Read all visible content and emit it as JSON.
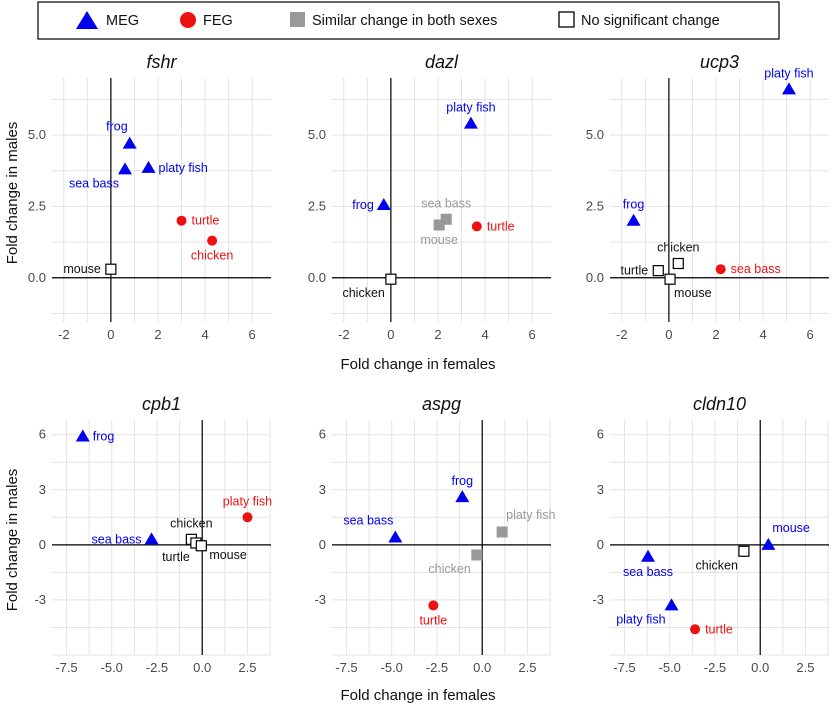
{
  "legend": {
    "items": [
      {
        "key": "MEG",
        "label": "MEG",
        "shape": "triangle",
        "color": "#0000ee"
      },
      {
        "key": "FEG",
        "label": "FEG",
        "shape": "circle",
        "color": "#ee1111"
      },
      {
        "key": "both",
        "label": "Similar change in both sexes",
        "shape": "square",
        "color": "#999999"
      },
      {
        "key": "ns",
        "label": "No significant change",
        "shape": "open-square",
        "color": "#000000"
      }
    ]
  },
  "axis_labels": {
    "top_x": "Fold change in females",
    "bottom_x": "Fold change in females",
    "top_y": "Fold change in males",
    "bottom_y": "Fold change in males"
  },
  "colors": {
    "MEG": "#0000ee",
    "FEG": "#ee1111",
    "both": "#999999",
    "ns": "#000000"
  },
  "chart_data": [
    {
      "type": "scatter",
      "title": "fshr",
      "xlim": [
        -2.5,
        6.8
      ],
      "ylim": [
        -1.55,
        7.0
      ],
      "xticks": [
        -2,
        0,
        2,
        4,
        6
      ],
      "xtick_labels": [
        "-2",
        "0",
        "2",
        "4",
        "6"
      ],
      "yticks": [
        0,
        2.5,
        5
      ],
      "ytick_labels": [
        "0.0",
        "2.5",
        "5.0"
      ],
      "points": [
        {
          "label": "frog",
          "x": 0.8,
          "y": 4.7,
          "category": "MEG",
          "label_pos": "above-left"
        },
        {
          "label": "sea bass",
          "x": 0.6,
          "y": 3.8,
          "category": "MEG",
          "label_pos": "below-left"
        },
        {
          "label": "platy fish",
          "x": 1.6,
          "y": 3.85,
          "category": "MEG",
          "label_pos": "right"
        },
        {
          "label": "turtle",
          "x": 3.0,
          "y": 2.0,
          "category": "FEG",
          "label_pos": "right"
        },
        {
          "label": "chicken",
          "x": 4.3,
          "y": 1.3,
          "category": "FEG",
          "label_pos": "below"
        },
        {
          "label": "mouse",
          "x": 0.0,
          "y": 0.3,
          "category": "ns",
          "label_pos": "left"
        }
      ]
    },
    {
      "type": "scatter",
      "title": "dazl",
      "xlim": [
        -2.5,
        6.8
      ],
      "ylim": [
        -1.55,
        7.0
      ],
      "xticks": [
        -2,
        0,
        2,
        4,
        6
      ],
      "xtick_labels": [
        "-2",
        "0",
        "2",
        "4",
        "6"
      ],
      "yticks": [
        0,
        2.5,
        5
      ],
      "ytick_labels": [
        "0.0",
        "2.5",
        "5.0"
      ],
      "points": [
        {
          "label": "platy fish",
          "x": 3.4,
          "y": 5.4,
          "category": "MEG",
          "label_pos": "above"
        },
        {
          "label": "frog",
          "x": -0.3,
          "y": 2.55,
          "category": "MEG",
          "label_pos": "left"
        },
        {
          "label": "sea bass",
          "x": 2.35,
          "y": 2.05,
          "category": "both",
          "label_pos": "above"
        },
        {
          "label": "mouse",
          "x": 2.05,
          "y": 1.85,
          "category": "both",
          "label_pos": "below"
        },
        {
          "label": "turtle",
          "x": 3.65,
          "y": 1.8,
          "category": "FEG",
          "label_pos": "right"
        },
        {
          "label": "chicken",
          "x": 0.0,
          "y": -0.05,
          "category": "ns",
          "label_pos": "below-left"
        }
      ]
    },
    {
      "type": "scatter",
      "title": "ucp3",
      "xlim": [
        -2.5,
        6.8
      ],
      "ylim": [
        -1.55,
        7.0
      ],
      "xticks": [
        -2,
        0,
        2,
        4,
        6
      ],
      "xtick_labels": [
        "-2",
        "0",
        "2",
        "4",
        "6"
      ],
      "yticks": [
        0,
        2.5,
        5
      ],
      "ytick_labels": [
        "0.0",
        "2.5",
        "5.0"
      ],
      "points": [
        {
          "label": "platy fish",
          "x": 5.1,
          "y": 6.6,
          "category": "MEG",
          "label_pos": "above"
        },
        {
          "label": "frog",
          "x": -1.5,
          "y": 2.0,
          "category": "MEG",
          "label_pos": "above"
        },
        {
          "label": "chicken",
          "x": 0.4,
          "y": 0.5,
          "category": "ns",
          "label_pos": "above"
        },
        {
          "label": "turtle",
          "x": -0.45,
          "y": 0.25,
          "category": "ns",
          "label_pos": "left"
        },
        {
          "label": "mouse",
          "x": 0.05,
          "y": -0.05,
          "category": "ns",
          "label_pos": "below-right"
        },
        {
          "label": "sea bass",
          "x": 2.2,
          "y": 0.3,
          "category": "FEG",
          "label_pos": "right"
        }
      ]
    },
    {
      "type": "scatter",
      "title": "cpb1",
      "xlim": [
        -8.3,
        3.8
      ],
      "ylim": [
        -6.0,
        6.8
      ],
      "xticks": [
        -7.5,
        -5.0,
        -2.5,
        0.0,
        2.5
      ],
      "xtick_labels": [
        "-7.5",
        "-5.0",
        "-2.5",
        "0.0",
        "2.5"
      ],
      "yticks": [
        -3,
        0,
        3,
        6
      ],
      "ytick_labels": [
        "-3",
        "0",
        "3",
        "6"
      ],
      "points": [
        {
          "label": "frog",
          "x": -6.6,
          "y": 5.9,
          "category": "MEG",
          "label_pos": "right"
        },
        {
          "label": "platy fish",
          "x": 2.5,
          "y": 1.5,
          "category": "FEG",
          "label_pos": "above"
        },
        {
          "label": "sea bass",
          "x": -2.8,
          "y": 0.3,
          "category": "MEG",
          "label_pos": "left"
        },
        {
          "label": "chicken",
          "x": -0.6,
          "y": 0.3,
          "category": "ns",
          "label_pos": "above"
        },
        {
          "label": "turtle",
          "x": -0.35,
          "y": 0.1,
          "category": "ns",
          "label_pos": "below-left"
        },
        {
          "label": "mouse",
          "x": -0.05,
          "y": -0.05,
          "category": "ns",
          "label_pos": "right-below"
        }
      ]
    },
    {
      "type": "scatter",
      "title": "aspg",
      "xlim": [
        -8.3,
        3.8
      ],
      "ylim": [
        -6.0,
        6.8
      ],
      "xticks": [
        -7.5,
        -5.0,
        -2.5,
        0.0,
        2.5
      ],
      "xtick_labels": [
        "-7.5",
        "-5.0",
        "-2.5",
        "0.0",
        "2.5"
      ],
      "yticks": [
        -3,
        0,
        3,
        6
      ],
      "ytick_labels": [
        "-3",
        "0",
        "3",
        "6"
      ],
      "points": [
        {
          "label": "frog",
          "x": -1.1,
          "y": 2.6,
          "category": "MEG",
          "label_pos": "above"
        },
        {
          "label": "sea bass",
          "x": -4.8,
          "y": 0.4,
          "category": "MEG",
          "label_pos": "above-left"
        },
        {
          "label": "platy fish",
          "x": 1.1,
          "y": 0.7,
          "category": "both",
          "label_pos": "above-right"
        },
        {
          "label": "chicken",
          "x": -0.3,
          "y": -0.55,
          "category": "both",
          "label_pos": "below-left"
        },
        {
          "label": "turtle",
          "x": -2.7,
          "y": -3.3,
          "category": "FEG",
          "label_pos": "below"
        }
      ]
    },
    {
      "type": "scatter",
      "title": "cldn10",
      "xlim": [
        -8.3,
        3.8
      ],
      "ylim": [
        -6.0,
        6.8
      ],
      "xticks": [
        -7.5,
        -5.0,
        -2.5,
        0.0,
        2.5
      ],
      "xtick_labels": [
        "-7.5",
        "-5.0",
        "-2.5",
        "0.0",
        "2.5"
      ],
      "yticks": [
        -3,
        0,
        3,
        6
      ],
      "ytick_labels": [
        "-3",
        "0",
        "3",
        "6"
      ],
      "points": [
        {
          "label": "mouse",
          "x": 0.45,
          "y": 0.0,
          "category": "MEG",
          "label_pos": "above-right"
        },
        {
          "label": "sea bass",
          "x": -6.2,
          "y": -0.65,
          "category": "MEG",
          "label_pos": "below"
        },
        {
          "label": "chicken",
          "x": -0.9,
          "y": -0.35,
          "category": "ns",
          "label_pos": "below-left"
        },
        {
          "label": "platy fish",
          "x": -4.9,
          "y": -3.3,
          "category": "MEG",
          "label_pos": "below-left"
        },
        {
          "label": "turtle",
          "x": -3.6,
          "y": -4.6,
          "category": "FEG",
          "label_pos": "right"
        }
      ]
    }
  ]
}
